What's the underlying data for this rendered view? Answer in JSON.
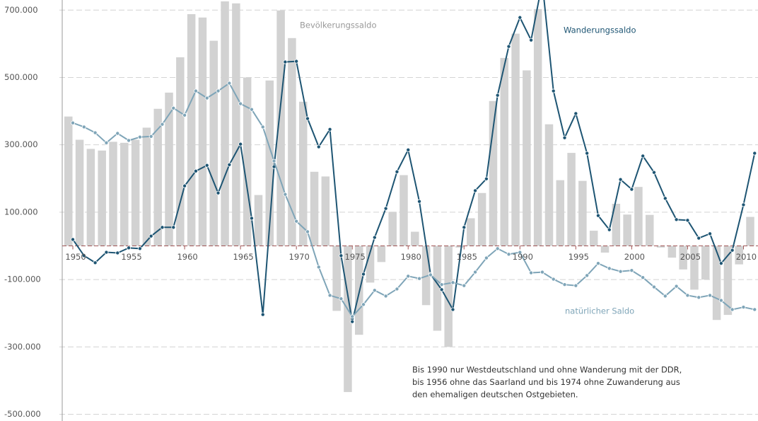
{
  "chart_data": {
    "type": "combo",
    "x": [
      1950,
      1951,
      1952,
      1953,
      1954,
      1955,
      1956,
      1957,
      1958,
      1959,
      1960,
      1961,
      1962,
      1963,
      1964,
      1965,
      1966,
      1967,
      1968,
      1969,
      1970,
      1971,
      1972,
      1973,
      1974,
      1975,
      1976,
      1977,
      1978,
      1979,
      1980,
      1981,
      1982,
      1983,
      1984,
      1985,
      1986,
      1987,
      1988,
      1989,
      1990,
      1991,
      1992,
      1993,
      1994,
      1995,
      1996,
      1997,
      1998,
      1999,
      2000,
      2001,
      2002,
      2003,
      2004,
      2005,
      2006,
      2007,
      2008,
      2009,
      2010,
      2011
    ],
    "xlim": [
      1949.05,
      2011.3
    ],
    "xticks": [
      1950,
      1955,
      1960,
      1965,
      1970,
      1975,
      1980,
      1985,
      1990,
      1995,
      2000,
      2005,
      2010
    ],
    "ylim": [
      -520000,
      730000
    ],
    "yticks": [
      {
        "value": 700000,
        "label": "700.000"
      },
      {
        "value": 500000,
        "label": "500.000"
      },
      {
        "value": 300000,
        "label": "300.000"
      },
      {
        "value": 100000,
        "label": "100.000"
      },
      {
        "value": -100000,
        "label": "-100.000"
      },
      {
        "value": -300000,
        "label": "-300.000"
      },
      {
        "value": -500000,
        "label": "-500.000"
      }
    ],
    "grid": true,
    "series": [
      {
        "name": "Bevölkerungssaldo",
        "type": "bar",
        "color": "#d2d2d2",
        "values": [
          384000,
          315000,
          288000,
          283000,
          309000,
          306000,
          315000,
          351000,
          407000,
          455000,
          560000,
          688000,
          678000,
          609000,
          726000,
          720000,
          500000,
          151000,
          491000,
          699000,
          617000,
          428000,
          220000,
          206000,
          -193000,
          -434000,
          -264000,
          -109000,
          -48000,
          101000,
          210000,
          42000,
          -176000,
          -252000,
          -300000,
          -5000,
          82000,
          157000,
          430000,
          558000,
          630000,
          521000,
          703000,
          361000,
          195000,
          276000,
          193000,
          45000,
          -20000,
          125000,
          93000,
          175000,
          92000,
          -5000,
          -35000,
          -70000,
          -130000,
          -100000,
          -220000,
          -205000,
          -55000,
          86000
        ]
      },
      {
        "name": "Wanderungssaldo",
        "type": "line",
        "color": "#1e5573",
        "values": [
          19000,
          -29000,
          -50000,
          -19000,
          -21000,
          -6000,
          -8000,
          29000,
          55000,
          55000,
          178000,
          222000,
          239000,
          157000,
          241000,
          302000,
          82000,
          -204000,
          235000,
          546000,
          548000,
          378000,
          294000,
          346000,
          -29000,
          -225000,
          -84000,
          25000,
          111000,
          220000,
          285000,
          132000,
          -84000,
          -130000,
          -189000,
          55000,
          164000,
          199000,
          447000,
          592000,
          678000,
          611000,
          782000,
          460000,
          321000,
          393000,
          275000,
          90000,
          48000,
          197000,
          168000,
          267000,
          218000,
          141000,
          78000,
          76000,
          23000,
          36000,
          -52000,
          -13000,
          122000,
          275000
        ]
      },
      {
        "name": "natürlicher Saldo",
        "type": "line",
        "color": "#7fa5b8",
        "values": [
          365000,
          353000,
          336000,
          306000,
          334000,
          313000,
          323000,
          325000,
          361000,
          409000,
          388000,
          460000,
          439000,
          460000,
          483000,
          422000,
          405000,
          353000,
          252000,
          153000,
          73000,
          42000,
          -63000,
          -147000,
          -157000,
          -210000,
          -174000,
          -132000,
          -149000,
          -128000,
          -90000,
          -97000,
          -86000,
          -115000,
          -109000,
          -118000,
          -78000,
          -36000,
          -8000,
          -25000,
          -19000,
          -80000,
          -78000,
          -99000,
          -115000,
          -118000,
          -88000,
          -52000,
          -67000,
          -76000,
          -73000,
          -94000,
          -122000,
          -149000,
          -120000,
          -147000,
          -153000,
          -147000,
          -162000,
          -189000,
          -182000,
          -189000
        ]
      }
    ],
    "note": [
      "Bis 1990 nur Westdeutschland und ohne Wanderung mit der DDR,",
      "bis 1956 ohne das Saarland und bis 1974 ohne Zuwanderung aus",
      "den ehemaligen deutschen Ostgebieten."
    ]
  }
}
